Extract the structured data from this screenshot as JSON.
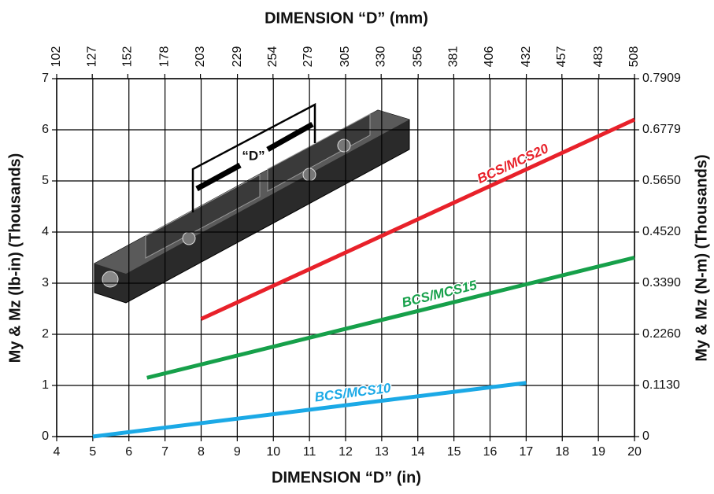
{
  "chart_data": {
    "type": "line",
    "title": "DIMENSION “D” (mm)",
    "x_label": "DIMENSION “D” (in)",
    "y_label": "My & Mz (lb-in) (Thousands)",
    "y2_label": "My & Mz (N-m) (Thousands)",
    "annotation": "“D”",
    "xlim": [
      4,
      20
    ],
    "xticks": [
      4,
      5,
      6,
      7,
      8,
      9,
      10,
      11,
      12,
      13,
      14,
      15,
      16,
      17,
      18,
      19,
      20
    ],
    "x2lim": [
      102,
      508
    ],
    "x2ticks": [
      102,
      127,
      152,
      178,
      203,
      229,
      254,
      279,
      305,
      330,
      356,
      381,
      406,
      432,
      457,
      483,
      508
    ],
    "ylim": [
      0,
      7
    ],
    "yticks": [
      0,
      1,
      2,
      3,
      4,
      5,
      6,
      7
    ],
    "y2lim": [
      0,
      0.7909
    ],
    "y2ticks": [
      0,
      {
        "value": 0.113,
        "label": "0.1130"
      },
      {
        "value": 0.226,
        "label": "0.2260"
      },
      {
        "value": 0.339,
        "label": "0.3390"
      },
      {
        "value": 0.452,
        "label": "0.4520"
      },
      {
        "value": 0.565,
        "label": "0.5650"
      },
      0.6779,
      0.7909
    ],
    "grid": true,
    "series": [
      {
        "name": "BCS/MCS20",
        "color": "#e8212a",
        "x": [
          8,
          20
        ],
        "values": [
          2.3,
          6.2
        ]
      },
      {
        "name": "BCS/MCS15",
        "color": "#16a04a",
        "x": [
          6.5,
          20
        ],
        "values": [
          1.15,
          3.5
        ]
      },
      {
        "name": "BCS/MCS10",
        "color": "#1ba9e6",
        "x": [
          5,
          17
        ],
        "values": [
          0,
          1.05
        ]
      }
    ]
  }
}
